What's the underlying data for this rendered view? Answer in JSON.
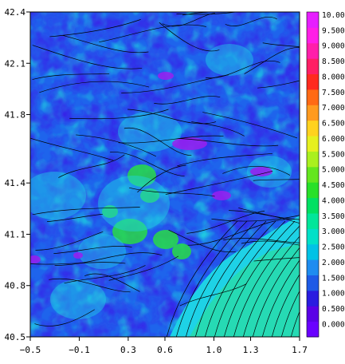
{
  "chart_data": {
    "type": "heatmap",
    "title": "",
    "xlabel": "",
    "ylabel": "",
    "xlim": [
      -0.5,
      1.7
    ],
    "ylim": [
      40.5,
      42.4
    ],
    "x_ticks": [
      -0.5,
      -0.1,
      0.3,
      0.6,
      1.0,
      1.3,
      1.7
    ],
    "x_tick_labels": [
      "−0.5",
      "−0.1",
      "0.3",
      "0.6",
      "1.0",
      "1.3",
      "1.7"
    ],
    "y_ticks": [
      40.5,
      40.8,
      41.1,
      41.4,
      41.8,
      42.1,
      42.4
    ],
    "y_tick_labels": [
      "40.5",
      "40.8",
      "41.1",
      "41.4",
      "41.8",
      "42.1",
      "42.4"
    ],
    "colorbar": {
      "levels": [
        0.0,
        0.5,
        1.0,
        1.5,
        2.0,
        2.5,
        3.0,
        3.5,
        4.0,
        4.5,
        5.0,
        5.5,
        6.0,
        6.5,
        7.0,
        7.5,
        8.0,
        8.5,
        9.0,
        9.5,
        10.0
      ],
      "labels": [
        "0.000",
        "0.500",
        "1.000",
        "1.500",
        "2.000",
        "2.500",
        "3.000",
        "3.500",
        "4.000",
        "4.500",
        "5.000",
        "5.500",
        "6.000",
        "6.500",
        "7.000",
        "7.500",
        "8.000",
        "8.500",
        "9.000",
        "9.500",
        "10.00"
      ],
      "colors": [
        "#6a00ff",
        "#5a00e6",
        "#2a1ce0",
        "#1e5ae6",
        "#1e8cf0",
        "#00c2e6",
        "#00e0c8",
        "#00e69a",
        "#00e062",
        "#28e028",
        "#64e61e",
        "#aaf01e",
        "#e6f01e",
        "#ffd21e",
        "#ff9a1e",
        "#ff6a14",
        "#ff2a1e",
        "#ff1e64",
        "#ff1eaa",
        "#ff1ee6",
        "#e61eff"
      ]
    },
    "field_colors": {
      "low": "#2838e8",
      "mid": "#1ed2e6",
      "high": "#28e63c",
      "peak": "#9a1ef0"
    },
    "streamlines": true,
    "grid": false
  }
}
